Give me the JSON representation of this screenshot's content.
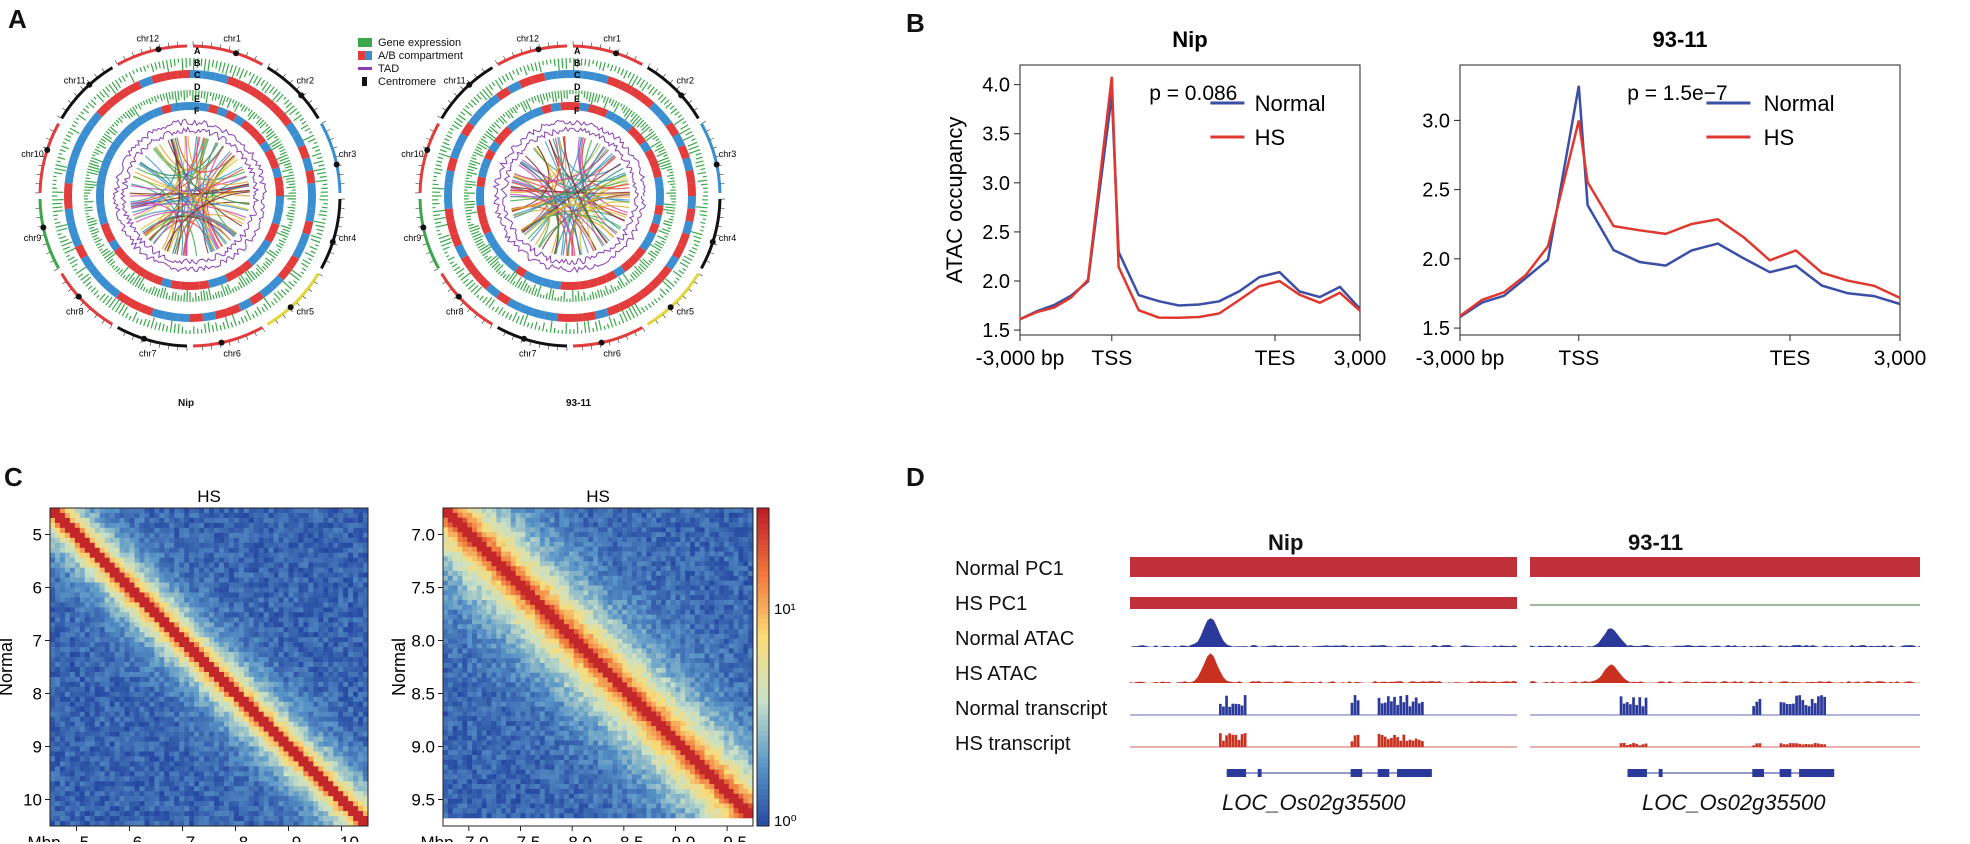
{
  "panels": {
    "a": "A",
    "b": "B",
    "c": "C",
    "d": "D"
  },
  "panelA": {
    "legend": [
      {
        "label": "Gene expression",
        "color": "#3aa84a"
      },
      {
        "label": "A/B compartment",
        "color": "#e33c3c"
      },
      {
        "label": "TAD",
        "color": "#8a3fb5"
      },
      {
        "label": "Centromere",
        "color": "#111111"
      }
    ],
    "rings": [
      "A",
      "B",
      "C",
      "D",
      "E",
      "F"
    ],
    "left_caption": "Nip",
    "right_caption": "93-11",
    "chromosomes": [
      "chr1",
      "chr2",
      "chr3",
      "chr4",
      "chr5",
      "chr6",
      "chr7",
      "chr8",
      "chr9",
      "chr10",
      "chr11",
      "chr12"
    ]
  },
  "chart_data": [
    {
      "type": "line",
      "title": "Nip",
      "ylabel": "ATAC  occupancy",
      "x_ticks": [
        "-3,000 bp",
        "TSS",
        "TES",
        "3,000"
      ],
      "ylim": [
        1.45,
        4.2
      ],
      "y_ticks": [
        "1.5",
        "2.0",
        "2.5",
        "3.0",
        "3.5",
        "4.0"
      ],
      "annotation": "p = 0.086",
      "series": [
        {
          "name": "Normal",
          "color": "#3a4fa6",
          "values": [
            1.62,
            1.7,
            1.75,
            1.85,
            2.0,
            3.9,
            2.3,
            1.85,
            1.78,
            1.76,
            1.75,
            1.8,
            1.9,
            2.05,
            2.1,
            1.9,
            1.85,
            1.95,
            1.72
          ]
        },
        {
          "name": "HS",
          "color": "#e0382e",
          "values": [
            1.6,
            1.68,
            1.74,
            1.84,
            2.0,
            4.08,
            2.15,
            1.7,
            1.64,
            1.62,
            1.62,
            1.68,
            1.8,
            1.95,
            2.0,
            1.85,
            1.78,
            1.88,
            1.7
          ]
        }
      ]
    },
    {
      "type": "line",
      "title": "93-11",
      "ylabel": "",
      "x_ticks": [
        "-3,000 bp",
        "TSS",
        "TES",
        "3,000"
      ],
      "ylim": [
        1.45,
        3.4
      ],
      "y_ticks": [
        "1.5",
        "2.0",
        "2.5",
        "3.0"
      ],
      "annotation": "p = 1.5e−7",
      "series": [
        {
          "name": "Normal",
          "color": "#3a4fa6",
          "values": [
            1.58,
            1.68,
            1.72,
            1.85,
            2.0,
            3.25,
            2.4,
            2.05,
            1.98,
            1.95,
            2.05,
            2.12,
            2.0,
            1.9,
            1.95,
            1.8,
            1.75,
            1.72,
            1.68
          ]
        },
        {
          "name": "HS",
          "color": "#e0382e",
          "values": [
            1.6,
            1.7,
            1.75,
            1.88,
            2.1,
            3.0,
            2.55,
            2.25,
            2.22,
            2.18,
            2.25,
            2.28,
            2.15,
            2.0,
            2.05,
            1.9,
            1.85,
            1.82,
            1.72
          ]
        }
      ]
    },
    {
      "type": "heatmap",
      "title": "HS",
      "ylabel": "Normal",
      "x_ticks": [
        "Mbp",
        "5",
        "6",
        "7",
        "8",
        "9",
        "10"
      ],
      "y_ticks": [
        "5",
        "6",
        "7",
        "8",
        "9",
        "10"
      ]
    },
    {
      "type": "heatmap",
      "title": "HS",
      "ylabel": "Normal",
      "x_ticks": [
        "Mbp",
        "7.0",
        "7.5",
        "8.0",
        "8.5",
        "9.0",
        "9.5"
      ],
      "y_ticks": [
        "7.0",
        "7.5",
        "8.0",
        "8.5",
        "9.0",
        "9.5"
      ],
      "colorbar_ticks": [
        "10¹",
        "10⁰"
      ]
    }
  ],
  "panelD": {
    "col_titles": [
      "Nip",
      "93-11"
    ],
    "tracks": [
      "Normal PC1",
      "HS PC1",
      "Normal ATAC",
      "HS ATAC",
      "Normal transcript",
      "HS transcript"
    ],
    "gene": "LOC_Os02g35500"
  }
}
